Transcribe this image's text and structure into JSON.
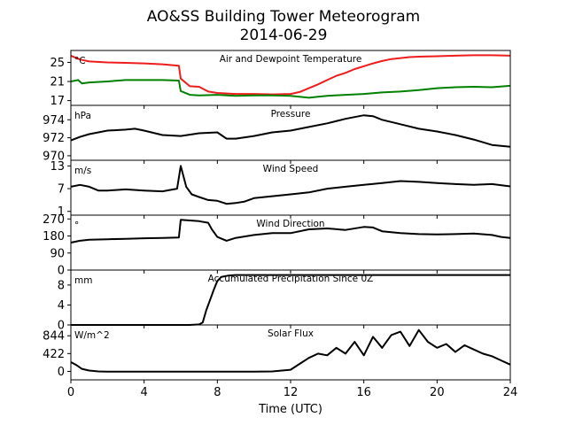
{
  "figure": {
    "title_line1": "AO&SS Building Tower Meteorogram",
    "title_line2": "2014-06-29",
    "xlabel": "Time (UTC)"
  },
  "chart_data": [
    {
      "type": "line",
      "title": "Air and Dewpoint Temperature",
      "units": "°C",
      "ylim": [
        16,
        27.5
      ],
      "yticks": [
        17,
        21,
        25
      ],
      "xlim": [
        0,
        24
      ],
      "series": [
        {
          "color": "#ee1c1c",
          "x": [
            0,
            0.5,
            1,
            2,
            3,
            4,
            5,
            5.9,
            6.0,
            6.5,
            7,
            7.5,
            8,
            9,
            10,
            11,
            12,
            12.5,
            13,
            13.5,
            14,
            14.5,
            15,
            15.5,
            16,
            16.5,
            17,
            17.5,
            18,
            18.5,
            19,
            20,
            21,
            22,
            23,
            24
          ],
          "y": [
            26.4,
            25.6,
            25.2,
            25.0,
            24.9,
            24.8,
            24.6,
            24.3,
            21.6,
            20.0,
            19.9,
            18.9,
            18.6,
            18.4,
            18.4,
            18.3,
            18.4,
            18.8,
            19.6,
            20.4,
            21.3,
            22.2,
            22.8,
            23.6,
            24.2,
            24.8,
            25.3,
            25.7,
            25.9,
            26.1,
            26.2,
            26.3,
            26.4,
            26.5,
            26.5,
            26.4
          ]
        },
        {
          "color": "#008000",
          "x": [
            0,
            0.4,
            0.6,
            1,
            2,
            3,
            4,
            5,
            5.9,
            6.0,
            6.5,
            7,
            8,
            9,
            10,
            11,
            12,
            13,
            13.5,
            14,
            15,
            16,
            17,
            18,
            19,
            20,
            21,
            22,
            23,
            24
          ],
          "y": [
            21.0,
            21.3,
            20.6,
            20.8,
            21.0,
            21.3,
            21.3,
            21.3,
            21.2,
            19.0,
            18.2,
            18.1,
            18.2,
            18.0,
            18.1,
            18.1,
            18.0,
            17.6,
            17.8,
            18.0,
            18.2,
            18.4,
            18.7,
            18.9,
            19.2,
            19.6,
            19.8,
            19.9,
            19.8,
            20.1
          ]
        }
      ]
    },
    {
      "type": "line",
      "title": "Pressure",
      "units": "hPa",
      "ylim": [
        969.5,
        975.6
      ],
      "yticks": [
        970,
        972,
        974
      ],
      "xlim": [
        0,
        24
      ],
      "series": [
        {
          "color": "#000000",
          "x": [
            0,
            0.5,
            1,
            2,
            3,
            3.5,
            4,
            5,
            6,
            7,
            8,
            8.5,
            9,
            10,
            11,
            12,
            13,
            14,
            15,
            16,
            16.5,
            17,
            18,
            19,
            20,
            21,
            22,
            23,
            24
          ],
          "y": [
            971.7,
            972.1,
            972.4,
            972.8,
            972.9,
            973.0,
            972.8,
            972.3,
            972.2,
            972.5,
            972.6,
            971.9,
            971.9,
            972.2,
            972.6,
            972.8,
            973.2,
            973.6,
            974.1,
            974.5,
            974.4,
            974.0,
            973.5,
            973.0,
            972.7,
            972.3,
            971.8,
            971.2,
            971.0
          ]
        }
      ]
    },
    {
      "type": "line",
      "title": "Wind Speed",
      "units": "m/s",
      "ylim": [
        0,
        14.5
      ],
      "yticks": [
        1,
        7,
        13
      ],
      "xlim": [
        0,
        24
      ],
      "series": [
        {
          "color": "#000000",
          "x": [
            0,
            0.5,
            1,
            1.5,
            2,
            3,
            4,
            5,
            5.8,
            6.0,
            6.3,
            6.6,
            7,
            7.5,
            8,
            8.5,
            9,
            9.5,
            10,
            11,
            12,
            13,
            14,
            15,
            16,
            17,
            18,
            19,
            20,
            21,
            22,
            23,
            24
          ],
          "y": [
            7.5,
            8.0,
            7.5,
            6.5,
            6.5,
            6.8,
            6.5,
            6.3,
            7.0,
            13.0,
            7.5,
            5.5,
            4.8,
            4.0,
            3.8,
            3.0,
            3.2,
            3.6,
            4.5,
            5.0,
            5.5,
            6.0,
            7.0,
            7.5,
            8.0,
            8.5,
            9.0,
            8.8,
            8.5,
            8.2,
            8.0,
            8.2,
            7.6
          ]
        }
      ]
    },
    {
      "type": "line",
      "title": "Wind Direction",
      "units": "°",
      "ylim": [
        0,
        290
      ],
      "yticks": [
        0,
        90,
        180,
        270
      ],
      "xlim": [
        0,
        24
      ],
      "series": [
        {
          "color": "#000000",
          "x": [
            0,
            0.5,
            1,
            2,
            3,
            4,
            5,
            5.9,
            6.0,
            6.5,
            7,
            7.5,
            7.7,
            8,
            8.5,
            9,
            10,
            11,
            12,
            13,
            14,
            15,
            16,
            16.5,
            17,
            18,
            19,
            20,
            21,
            22,
            23,
            23.5,
            24
          ],
          "y": [
            145,
            155,
            160,
            163,
            165,
            168,
            170,
            172,
            265,
            262,
            258,
            250,
            215,
            175,
            155,
            170,
            185,
            195,
            195,
            215,
            220,
            212,
            228,
            225,
            205,
            195,
            190,
            188,
            190,
            193,
            185,
            175,
            170
          ]
        }
      ]
    },
    {
      "type": "line",
      "title": "Accumulated Precipitation Since 0Z",
      "units": "mm",
      "ylim": [
        0,
        11
      ],
      "yticks": [
        0,
        4,
        8
      ],
      "xlim": [
        0,
        24
      ],
      "series": [
        {
          "color": "#000000",
          "x": [
            0,
            6.5,
            7.0,
            7.2,
            7.4,
            7.6,
            7.8,
            8.0,
            8.2,
            8.6,
            9.0,
            24
          ],
          "y": [
            0,
            0,
            0.1,
            0.5,
            3.0,
            5.0,
            7.0,
            8.8,
            9.6,
            9.9,
            10.0,
            10.0
          ]
        }
      ]
    },
    {
      "type": "line",
      "title": "Solar Flux",
      "units": "W/m^2",
      "ylim": [
        -200,
        1100
      ],
      "yticks": [
        0,
        422,
        844
      ],
      "xlim": [
        0,
        24
      ],
      "series": [
        {
          "color": "#000000",
          "x": [
            0,
            0.3,
            0.6,
            1,
            1.5,
            2,
            4,
            6,
            8,
            10,
            11,
            12,
            12.5,
            13,
            13.5,
            14,
            14.5,
            15,
            15.5,
            16,
            16.5,
            17,
            17.5,
            18,
            18.5,
            19,
            19.5,
            20,
            20.5,
            21,
            21.5,
            22,
            22.5,
            23,
            23.5,
            24
          ],
          "y": [
            220,
            150,
            60,
            20,
            0,
            -5,
            -5,
            -5,
            -5,
            -5,
            0,
            40,
            180,
            320,
            420,
            380,
            560,
            420,
            700,
            380,
            820,
            560,
            860,
            940,
            600,
            980,
            700,
            560,
            650,
            460,
            620,
            520,
            420,
            360,
            260,
            160
          ]
        }
      ]
    }
  ]
}
